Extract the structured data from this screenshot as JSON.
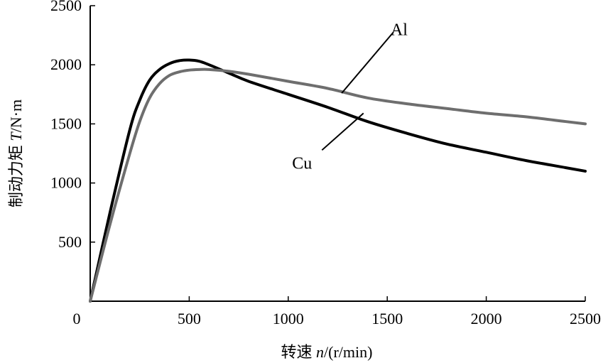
{
  "chart_data": {
    "type": "line",
    "title": "",
    "xlabel_main": "转速 ",
    "xlabel_italic": "n",
    "xlabel_unit": "/(r/min)",
    "ylabel_main": "制动力矩 ",
    "ylabel_italic": "T",
    "ylabel_unit": "/N·m",
    "xlim": [
      0,
      2500
    ],
    "ylim": [
      0,
      2500
    ],
    "x_origin_label": "0",
    "xticks": [
      500,
      1000,
      1500,
      2000,
      2500
    ],
    "xtick_labels": [
      "500",
      "1000",
      "1500",
      "2000",
      "2500"
    ],
    "yticks": [
      500,
      1000,
      1500,
      2000,
      2500
    ],
    "ytick_labels": [
      "500",
      "1000",
      "1500",
      "2000",
      "2500"
    ],
    "grid": false,
    "series": [
      {
        "name": "Cu",
        "color": "#000000",
        "x": [
          0,
          100,
          200,
          250,
          300,
          350,
          400,
          450,
          500,
          550,
          600,
          700,
          800,
          1000,
          1200,
          1400,
          1600,
          1800,
          2000,
          2200,
          2400,
          2500
        ],
        "y": [
          0,
          750,
          1450,
          1700,
          1870,
          1960,
          2010,
          2035,
          2040,
          2030,
          2000,
          1930,
          1860,
          1750,
          1640,
          1520,
          1420,
          1330,
          1260,
          1190,
          1130,
          1100
        ]
      },
      {
        "name": "Al",
        "color": "#6e6e6e",
        "x": [
          0,
          100,
          200,
          250,
          300,
          350,
          400,
          450,
          500,
          550,
          600,
          700,
          800,
          1000,
          1200,
          1400,
          1600,
          1800,
          2000,
          2200,
          2400,
          2500
        ],
        "y": [
          0,
          650,
          1250,
          1520,
          1720,
          1840,
          1910,
          1940,
          1955,
          1960,
          1960,
          1945,
          1920,
          1860,
          1800,
          1720,
          1670,
          1630,
          1590,
          1560,
          1520,
          1500
        ]
      }
    ],
    "annotations": [
      {
        "text": "Al",
        "series": "Al",
        "anchor_x": 1270,
        "anchor_y": 1760,
        "label_x": 1560,
        "label_y": 2300
      },
      {
        "text": "Cu",
        "series": "Cu",
        "anchor_x": 1380,
        "anchor_y": 1590,
        "label_x": 1070,
        "label_y": 1170
      }
    ]
  }
}
